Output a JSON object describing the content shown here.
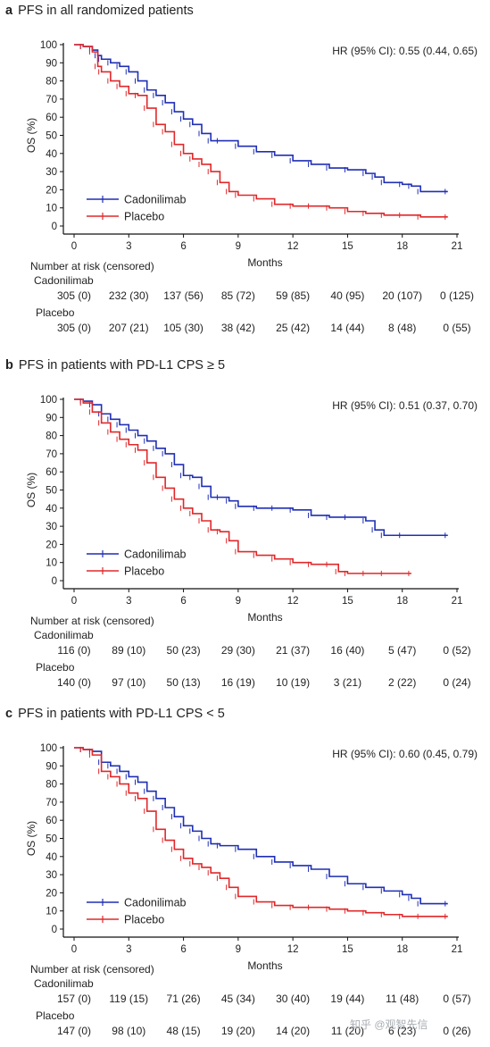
{
  "colors": {
    "cadonilimab": "#1f2fb4",
    "placebo": "#e0282a",
    "axis": "#111111"
  },
  "watermark": "知乎 @观智先信",
  "panels": [
    {
      "letter": "a",
      "title": "PFS in all randomized patients",
      "hr": "HR (95% CI): 0.55 (0.44, 0.65)",
      "risk_header": "Number at risk (censored)",
      "groups": [
        {
          "name": "Cadonilimab",
          "risk": [
            "305 (0)",
            "232 (30)",
            "137 (56)",
            "85 (72)",
            "59 (85)",
            "40 (95)",
            "20 (107)",
            "0 (125)"
          ]
        },
        {
          "name": "Placebo",
          "risk": [
            "305 (0)",
            "207 (21)",
            "105 (30)",
            "38 (42)",
            "25 (42)",
            "14 (44)",
            "8 (48)",
            "0 (55)"
          ]
        }
      ]
    },
    {
      "letter": "b",
      "title": "PFS in patients with PD-L1 CPS ≥ 5",
      "hr": "HR (95% CI): 0.51 (0.37, 0.70)",
      "risk_header": "Number at risk (censored)",
      "groups": [
        {
          "name": "Cadonilimab",
          "risk": [
            "116 (0)",
            "89 (10)",
            "50 (23)",
            "29 (30)",
            "21 (37)",
            "16 (40)",
            "5 (47)",
            "0 (52)"
          ]
        },
        {
          "name": "Placebo",
          "risk": [
            "140 (0)",
            "97 (10)",
            "50 (13)",
            "16 (19)",
            "10 (19)",
            "3 (21)",
            "2 (22)",
            "0 (24)"
          ]
        }
      ]
    },
    {
      "letter": "c",
      "title": "PFS in patients with PD-L1 CPS < 5",
      "hr": "HR (95% CI): 0.60 (0.45, 0.79)",
      "risk_header": "Number at risk (censored)",
      "groups": [
        {
          "name": "Cadonilimab",
          "risk": [
            "157 (0)",
            "119 (15)",
            "71 (26)",
            "45 (34)",
            "30 (40)",
            "19 (44)",
            "11 (48)",
            "0 (57)"
          ]
        },
        {
          "name": "Placebo",
          "risk": [
            "147 (0)",
            "98 (10)",
            "48 (15)",
            "19 (20)",
            "14 (20)",
            "11 (20)",
            "6 (23)",
            "0 (26)"
          ]
        }
      ]
    }
  ],
  "chart_data": [
    {
      "type": "line",
      "title": "PFS in all randomized patients",
      "xlabel": "Months",
      "ylabel": "OS (%)",
      "xlim": [
        0,
        21
      ],
      "ylim": [
        0,
        100
      ],
      "xticks": [
        0,
        3,
        6,
        9,
        12,
        15,
        18,
        21
      ],
      "yticks": [
        0,
        10,
        20,
        30,
        40,
        50,
        60,
        70,
        80,
        90,
        100
      ],
      "legend": "bottom-left",
      "series": [
        {
          "name": "Cadonilimab",
          "color": "#1f2fb4",
          "x": [
            0,
            0.5,
            1,
            1.3,
            1.5,
            2,
            2.5,
            3,
            3.5,
            4,
            4.5,
            5,
            5.5,
            6,
            6.5,
            7,
            7.5,
            8,
            9,
            10,
            11,
            12,
            13,
            14,
            15,
            16,
            16.5,
            17,
            18,
            18.5,
            19,
            20.5
          ],
          "y": [
            100,
            99,
            97,
            94,
            92,
            90,
            88,
            85,
            80,
            75,
            72,
            68,
            63,
            59,
            56,
            51,
            47,
            47,
            44,
            41,
            39,
            36,
            34,
            32,
            31,
            29,
            27,
            24,
            23,
            22,
            19,
            19
          ]
        },
        {
          "name": "Placebo",
          "color": "#e0282a",
          "x": [
            0,
            0.5,
            1,
            1.3,
            1.5,
            2,
            2.5,
            3,
            3.5,
            4,
            4.5,
            5,
            5.5,
            6,
            6.5,
            7,
            7.5,
            8,
            8.5,
            9,
            10,
            11,
            12,
            13,
            14,
            15,
            16,
            17,
            18,
            19,
            20.5
          ],
          "y": [
            100,
            99,
            96,
            88,
            85,
            80,
            77,
            73,
            72,
            65,
            56,
            52,
            45,
            40,
            37,
            34,
            30,
            24,
            19,
            17,
            15,
            12,
            11,
            11,
            10,
            8,
            7,
            6,
            6,
            5,
            5
          ]
        }
      ]
    },
    {
      "type": "line",
      "title": "PFS in patients with PD-L1 CPS ≥ 5",
      "xlabel": "Months",
      "ylabel": "OS (%)",
      "xlim": [
        0,
        21
      ],
      "ylim": [
        0,
        100
      ],
      "xticks": [
        0,
        3,
        6,
        9,
        12,
        15,
        18,
        21
      ],
      "yticks": [
        0,
        10,
        20,
        30,
        40,
        50,
        60,
        70,
        80,
        90,
        100
      ],
      "legend": "bottom-left",
      "series": [
        {
          "name": "Cadonilimab",
          "color": "#1f2fb4",
          "x": [
            0,
            0.5,
            1,
            1.5,
            2,
            2.5,
            3,
            3.5,
            4,
            4.5,
            5,
            5.5,
            6,
            6.5,
            7,
            7.5,
            8,
            8.5,
            9,
            10,
            11,
            12,
            13,
            14,
            15,
            16,
            16.5,
            17,
            18,
            20.5
          ],
          "y": [
            100,
            99,
            97,
            92,
            89,
            86,
            83,
            80,
            77,
            73,
            70,
            64,
            58,
            57,
            52,
            46,
            46,
            44,
            41,
            40,
            40,
            39,
            36,
            35,
            35,
            33,
            28,
            25,
            25,
            25
          ]
        },
        {
          "name": "Placebo",
          "color": "#e0282a",
          "x": [
            0,
            0.5,
            1,
            1.5,
            2,
            2.5,
            3,
            3.5,
            4,
            4.5,
            5,
            5.5,
            6,
            6.5,
            7,
            7.5,
            8,
            8.5,
            9,
            10,
            11,
            12,
            13,
            14,
            14.5,
            15,
            16,
            17,
            18.5
          ],
          "y": [
            100,
            98,
            93,
            87,
            82,
            78,
            75,
            72,
            65,
            57,
            51,
            45,
            40,
            37,
            33,
            28,
            27,
            22,
            16,
            14,
            12,
            10,
            9,
            9,
            5,
            4,
            4,
            4,
            4
          ]
        }
      ]
    },
    {
      "type": "line",
      "title": "PFS in patients with PD-L1 CPS < 5",
      "xlabel": "Months",
      "ylabel": "OS (%)",
      "xlim": [
        0,
        21
      ],
      "ylim": [
        0,
        100
      ],
      "xticks": [
        0,
        3,
        6,
        9,
        12,
        15,
        18,
        21
      ],
      "yticks": [
        0,
        10,
        20,
        30,
        40,
        50,
        60,
        70,
        80,
        90,
        100
      ],
      "legend": "bottom-left",
      "series": [
        {
          "name": "Cadonilimab",
          "color": "#1f2fb4",
          "x": [
            0,
            0.5,
            1,
            1.5,
            2,
            2.5,
            3,
            3.5,
            4,
            4.5,
            5,
            5.5,
            6,
            6.5,
            7,
            7.5,
            8,
            9,
            10,
            11,
            12,
            13,
            14,
            15,
            16,
            17,
            18,
            18.5,
            19,
            20.5
          ],
          "y": [
            100,
            99,
            98,
            92,
            90,
            87,
            84,
            81,
            76,
            72,
            67,
            62,
            57,
            54,
            50,
            47,
            46,
            44,
            40,
            37,
            35,
            33,
            29,
            25,
            23,
            21,
            19,
            17,
            14,
            14
          ]
        },
        {
          "name": "Placebo",
          "color": "#e0282a",
          "x": [
            0,
            0.5,
            1,
            1.5,
            2,
            2.5,
            3,
            3.5,
            4,
            4.5,
            5,
            5.5,
            6,
            6.5,
            7,
            7.5,
            8,
            8.5,
            9,
            10,
            11,
            12,
            13,
            14,
            15,
            16,
            17,
            18,
            19,
            20.5
          ],
          "y": [
            100,
            99,
            96,
            87,
            84,
            80,
            75,
            72,
            65,
            55,
            49,
            44,
            39,
            36,
            34,
            31,
            28,
            23,
            18,
            15,
            13,
            12,
            12,
            11,
            10,
            9,
            8,
            7,
            7,
            7
          ]
        }
      ]
    }
  ]
}
